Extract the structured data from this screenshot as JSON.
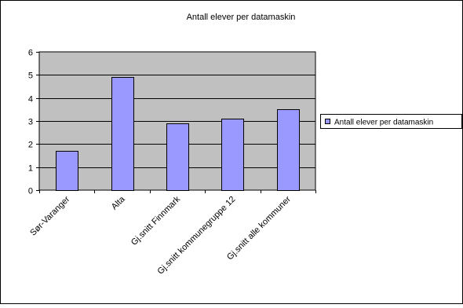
{
  "chart_data": {
    "type": "bar",
    "title": "Antall elever per datamaskin",
    "xlabel": "",
    "ylabel": "",
    "categories": [
      "Sør-Varanger",
      "Alta",
      "Gj.snitt Finnmark",
      "Gj.snitt kommunegruppe 12",
      "Gj.snitt alle kommuner"
    ],
    "series": [
      {
        "name": "Antall elever per datamaskin",
        "values": [
          1.7,
          4.9,
          2.9,
          3.1,
          3.5
        ]
      }
    ],
    "ylim": [
      0,
      6
    ],
    "yticks": [
      "0",
      "1",
      "2",
      "3",
      "4",
      "5",
      "6"
    ],
    "grid": true,
    "legend": "right",
    "colors": {
      "bar_fill": "#9999ff",
      "bar_stroke": "#000000",
      "plot_area": "#c0c0c0",
      "gridline": "#000000",
      "frame": "#000000"
    }
  }
}
